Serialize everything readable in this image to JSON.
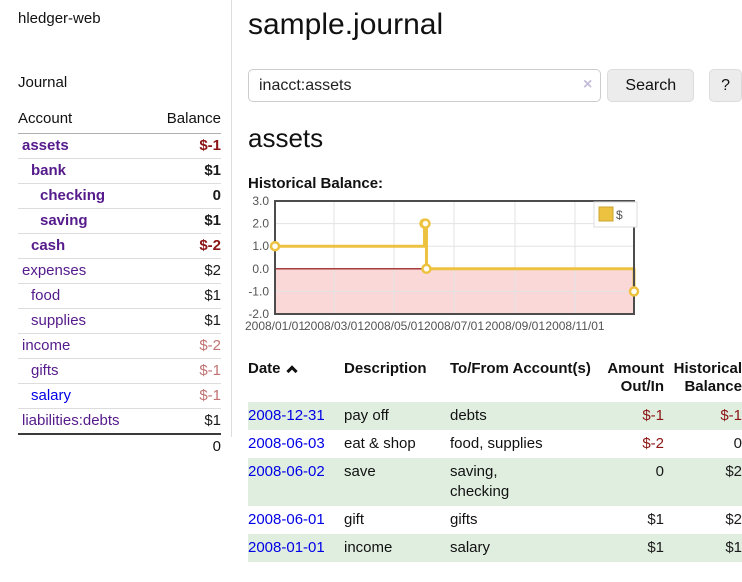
{
  "colors": {
    "purple": "#551a8b",
    "blue": "#0000e6",
    "strong_negative": "#8b1414",
    "weak_negative": "#c17272",
    "black": "#1a1a1a",
    "row_shade": "#e0eee0",
    "accent_gold": "#edc240",
    "negative_region": "#fbd8d8",
    "zero_line": "#8b0000"
  },
  "sidebar": {
    "brand": "hledger-web",
    "nav_journal": "Journal",
    "accounts": {
      "headers": {
        "account": "Account",
        "balance": "Balance"
      },
      "rows": [
        {
          "name": "assets",
          "depth": 1,
          "bold": true,
          "name_color": "purple",
          "balance": "$-1",
          "balance_color": "strong_negative"
        },
        {
          "name": "bank",
          "depth": 2,
          "bold": true,
          "name_color": "purple",
          "balance": "$1",
          "balance_color": "black"
        },
        {
          "name": "checking",
          "depth": 3,
          "bold": true,
          "name_color": "purple",
          "balance": "0",
          "balance_color": "black"
        },
        {
          "name": "saving",
          "depth": 3,
          "bold": true,
          "name_color": "purple",
          "balance": "$1",
          "balance_color": "black"
        },
        {
          "name": "cash",
          "depth": 2,
          "bold": true,
          "name_color": "purple",
          "balance": "$-2",
          "balance_color": "strong_negative"
        },
        {
          "name": "expenses",
          "depth": 1,
          "bold": false,
          "name_color": "purple",
          "balance": "$2",
          "balance_color": "black"
        },
        {
          "name": "food",
          "depth": 2,
          "bold": false,
          "name_color": "purple",
          "balance": "$1",
          "balance_color": "black"
        },
        {
          "name": "supplies",
          "depth": 2,
          "bold": false,
          "name_color": "purple",
          "balance": "$1",
          "balance_color": "black"
        },
        {
          "name": "income",
          "depth": 1,
          "bold": false,
          "name_color": "purple",
          "balance": "$-2",
          "balance_color": "weak_negative"
        },
        {
          "name": "gifts",
          "depth": 2,
          "bold": false,
          "name_color": "purple",
          "balance": "$-1",
          "balance_color": "weak_negative"
        },
        {
          "name": "salary",
          "depth": 2,
          "bold": false,
          "name_color": "blue",
          "balance": "$-1",
          "balance_color": "weak_negative"
        },
        {
          "name": "liabilities:debts",
          "depth": 1,
          "bold": false,
          "name_color": "purple",
          "balance": "$1",
          "balance_color": "black"
        }
      ],
      "total": "0"
    }
  },
  "header": {
    "title": "sample.journal"
  },
  "search": {
    "query": "inacct:assets",
    "clear_icon": "×",
    "button_label": "Search",
    "help_label": "?"
  },
  "account_page": {
    "heading": "assets",
    "chart_label": "Historical Balance:"
  },
  "chart_data": {
    "type": "line",
    "steps": true,
    "title": "Historical Balance:",
    "x_range": [
      "2008-01-01",
      "2008-12-31"
    ],
    "ylim": [
      -2.0,
      3.0
    ],
    "yticks": [
      3.0,
      2.0,
      1.0,
      0.0,
      -1.0,
      -2.0
    ],
    "xticks": [
      {
        "date": "2008-01-01",
        "label": "2008/01/01"
      },
      {
        "date": "2008-03-01",
        "label": "2008/03/01"
      },
      {
        "date": "2008-05-01",
        "label": "2008/05/01"
      },
      {
        "date": "2008-07-01",
        "label": "2008/07/01"
      },
      {
        "date": "2008-09-01",
        "label": "2008/09/01"
      },
      {
        "date": "2008-11-01",
        "label": "2008/11/01"
      }
    ],
    "series": [
      {
        "name": "$",
        "color": "#edc240",
        "points": [
          [
            "2008-01-01",
            1
          ],
          [
            "2008-06-01",
            2
          ],
          [
            "2008-06-02",
            2
          ],
          [
            "2008-06-03",
            0
          ],
          [
            "2008-12-31",
            -1
          ]
        ]
      }
    ],
    "legend_position": "top-right",
    "grid": true,
    "negative_region_color": "#fbd8d8",
    "zero_line_color": "#8b0000"
  },
  "register": {
    "headers": {
      "date": "Date",
      "description": "Description",
      "tofrom": "To/From Account(s)",
      "amount": "Amount Out/In",
      "balance": "Historical Balance"
    },
    "sort": "ascending",
    "rows": [
      {
        "date": "2008-12-31",
        "description": "pay off",
        "accounts": "debts",
        "amount": "$-1",
        "amount_color": "strong_negative",
        "balance": "$-1",
        "balance_color": "strong_negative",
        "shaded": true
      },
      {
        "date": "2008-06-03",
        "description": "eat & shop",
        "accounts": "food, supplies",
        "amount": "$-2",
        "amount_color": "strong_negative",
        "balance": "0",
        "balance_color": "black",
        "shaded": false
      },
      {
        "date": "2008-06-02",
        "description": "save",
        "accounts": "saving,\nchecking",
        "amount": "0",
        "amount_color": "black",
        "balance": "$2",
        "balance_color": "black",
        "shaded": true
      },
      {
        "date": "2008-06-01",
        "description": "gift",
        "accounts": "gifts",
        "amount": "$1",
        "amount_color": "black",
        "balance": "$2",
        "balance_color": "black",
        "shaded": false
      },
      {
        "date": "2008-01-01",
        "description": "income",
        "accounts": "salary",
        "amount": "$1",
        "amount_color": "black",
        "balance": "$1",
        "balance_color": "black",
        "shaded": true
      }
    ]
  }
}
